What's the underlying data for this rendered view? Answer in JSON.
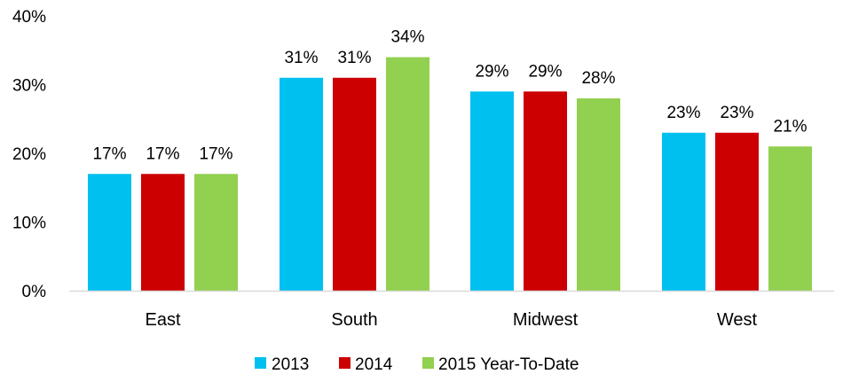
{
  "chart_data": {
    "type": "bar",
    "categories": [
      "East",
      "South",
      "Midwest",
      "West"
    ],
    "series": [
      {
        "name": "2013",
        "values": [
          17,
          31,
          29,
          23
        ],
        "labels": [
          "17%",
          "31%",
          "29%",
          "23%"
        ],
        "color": "#00C0F0"
      },
      {
        "name": "2014",
        "values": [
          17,
          31,
          29,
          23
        ],
        "labels": [
          "17%",
          "31%",
          "29%",
          "23%"
        ],
        "color": "#CC0000"
      },
      {
        "name": "2015 Year-To-Date",
        "values": [
          17,
          34,
          28,
          21
        ],
        "labels": [
          "17%",
          "34%",
          "28%",
          "21%"
        ],
        "color": "#92D050"
      }
    ],
    "ylim": [
      0,
      40
    ],
    "yticks": [
      0,
      10,
      20,
      30,
      40
    ],
    "ytick_labels": [
      "0%",
      "10%",
      "20%",
      "30%",
      "40%"
    ],
    "grid": false,
    "legend_position": "bottom",
    "axis_color": "#D9D9D9"
  }
}
